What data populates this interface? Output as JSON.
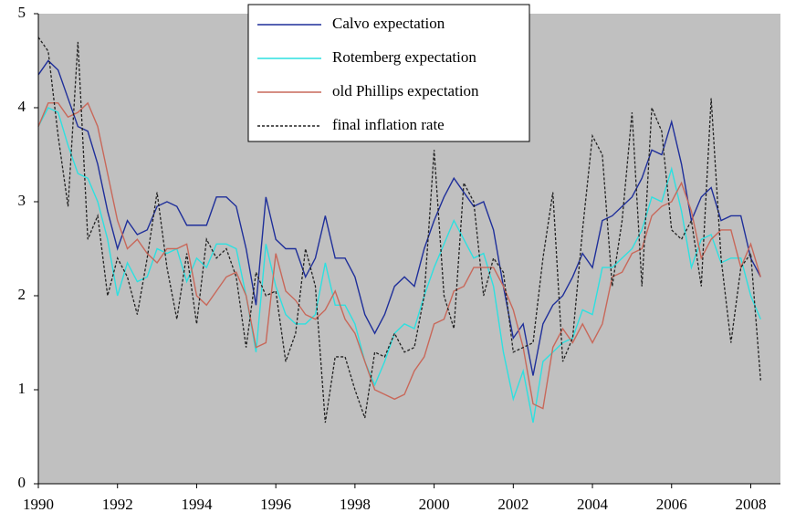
{
  "chart_data": {
    "type": "line",
    "x": [
      1990,
      1990.25,
      1990.5,
      1990.75,
      1991,
      1991.25,
      1991.5,
      1991.75,
      1992,
      1992.25,
      1992.5,
      1992.75,
      1993,
      1993.25,
      1993.5,
      1993.75,
      1994,
      1994.25,
      1994.5,
      1994.75,
      1995,
      1995.25,
      1995.5,
      1995.75,
      1996,
      1996.25,
      1996.5,
      1996.75,
      1997,
      1997.25,
      1997.5,
      1997.75,
      1998,
      1998.25,
      1998.5,
      1998.75,
      1999,
      1999.25,
      1999.5,
      1999.75,
      2000,
      2000.25,
      2000.5,
      2000.75,
      2001,
      2001.25,
      2001.5,
      2001.75,
      2002,
      2002.25,
      2002.5,
      2002.75,
      2003,
      2003.25,
      2003.5,
      2003.75,
      2004,
      2004.25,
      2004.5,
      2004.75,
      2005,
      2005.25,
      2005.5,
      2005.75,
      2006,
      2006.25,
      2006.5,
      2006.75,
      2007,
      2007.25,
      2007.5,
      2007.75,
      2008,
      2008.25
    ],
    "series": [
      {
        "name": "Calvo expectation",
        "color": "#1f2f9a",
        "dash": false,
        "values": [
          4.35,
          4.5,
          4.4,
          4.1,
          3.8,
          3.75,
          3.4,
          2.9,
          2.5,
          2.8,
          2.65,
          2.7,
          2.95,
          3.0,
          2.95,
          2.75,
          2.75,
          2.75,
          3.05,
          3.05,
          2.95,
          2.5,
          1.9,
          3.05,
          2.6,
          2.5,
          2.5,
          2.2,
          2.4,
          2.85,
          2.4,
          2.4,
          2.2,
          1.8,
          1.6,
          1.8,
          2.1,
          2.2,
          2.1,
          2.5,
          2.8,
          3.05,
          3.25,
          3.1,
          2.95,
          3.0,
          2.7,
          2.1,
          1.55,
          1.7,
          1.15,
          1.7,
          1.9,
          2.0,
          2.2,
          2.45,
          2.3,
          2.8,
          2.85,
          2.95,
          3.05,
          3.25,
          3.55,
          3.5,
          3.85,
          3.4,
          2.8,
          3.05,
          3.15,
          2.8,
          2.85,
          2.85,
          2.4,
          2.2
        ]
      },
      {
        "name": "Rotemberg expectation",
        "color": "#2de0e0",
        "dash": false,
        "values": [
          3.8,
          4.0,
          3.95,
          3.6,
          3.3,
          3.25,
          3.0,
          2.6,
          2.0,
          2.35,
          2.15,
          2.2,
          2.5,
          2.45,
          2.5,
          2.15,
          2.4,
          2.3,
          2.55,
          2.55,
          2.5,
          2.0,
          1.4,
          2.55,
          2.1,
          1.8,
          1.7,
          1.7,
          1.8,
          2.35,
          1.9,
          1.9,
          1.7,
          1.3,
          1.05,
          1.3,
          1.6,
          1.7,
          1.65,
          2.0,
          2.3,
          2.55,
          2.8,
          2.6,
          2.4,
          2.45,
          2.1,
          1.4,
          0.9,
          1.2,
          0.65,
          1.3,
          1.4,
          1.5,
          1.55,
          1.85,
          1.8,
          2.3,
          2.3,
          2.4,
          2.5,
          2.7,
          3.05,
          3.0,
          3.35,
          2.9,
          2.3,
          2.6,
          2.65,
          2.35,
          2.4,
          2.4,
          2.0,
          1.75
        ]
      },
      {
        "name": "old Phillips expectation",
        "color": "#c8685a",
        "dash": false,
        "values": [
          3.8,
          4.05,
          4.05,
          3.9,
          3.95,
          4.05,
          3.8,
          3.3,
          2.8,
          2.5,
          2.6,
          2.45,
          2.35,
          2.5,
          2.5,
          2.55,
          2.0,
          1.9,
          2.05,
          2.2,
          2.25,
          2.0,
          1.45,
          1.5,
          2.45,
          2.05,
          1.95,
          1.8,
          1.75,
          1.85,
          2.05,
          1.75,
          1.6,
          1.3,
          1.0,
          0.95,
          0.9,
          0.95,
          1.2,
          1.35,
          1.7,
          1.75,
          2.05,
          2.1,
          2.3,
          2.3,
          2.3,
          2.1,
          1.85,
          1.45,
          0.85,
          0.8,
          1.45,
          1.65,
          1.5,
          1.7,
          1.5,
          1.7,
          2.2,
          2.25,
          2.45,
          2.5,
          2.85,
          2.95,
          3.0,
          3.2,
          2.9,
          2.4,
          2.6,
          2.7,
          2.7,
          2.3,
          2.55,
          2.2
        ]
      },
      {
        "name": "final inflation rate",
        "color": "#222222",
        "dash": true,
        "values": [
          4.75,
          4.6,
          3.7,
          2.95,
          4.7,
          2.6,
          2.85,
          2.0,
          2.4,
          2.2,
          1.8,
          2.4,
          3.1,
          2.3,
          1.75,
          2.45,
          1.7,
          2.6,
          2.4,
          2.5,
          2.2,
          1.45,
          2.25,
          2.0,
          2.05,
          1.3,
          1.6,
          2.5,
          2.1,
          0.65,
          1.35,
          1.35,
          1.0,
          0.7,
          1.4,
          1.35,
          1.6,
          1.4,
          1.45,
          2.0,
          3.55,
          2.0,
          1.65,
          3.2,
          3.0,
          2.0,
          2.4,
          2.25,
          1.4,
          1.45,
          1.5,
          2.4,
          3.1,
          1.3,
          1.55,
          2.7,
          3.7,
          3.5,
          2.1,
          2.8,
          3.95,
          2.1,
          4.0,
          3.75,
          2.7,
          2.6,
          2.8,
          2.1,
          4.1,
          2.4,
          1.5,
          2.3,
          2.45,
          1.1
        ]
      }
    ],
    "xlim": [
      1990,
      2008.75
    ],
    "ylim": [
      0,
      5
    ],
    "xticks": [
      1990,
      1992,
      1994,
      1996,
      1998,
      2000,
      2002,
      2004,
      2006,
      2008
    ],
    "yticks": [
      0,
      1,
      2,
      3,
      4,
      5
    ],
    "plot_background": "#c0c0c0"
  }
}
